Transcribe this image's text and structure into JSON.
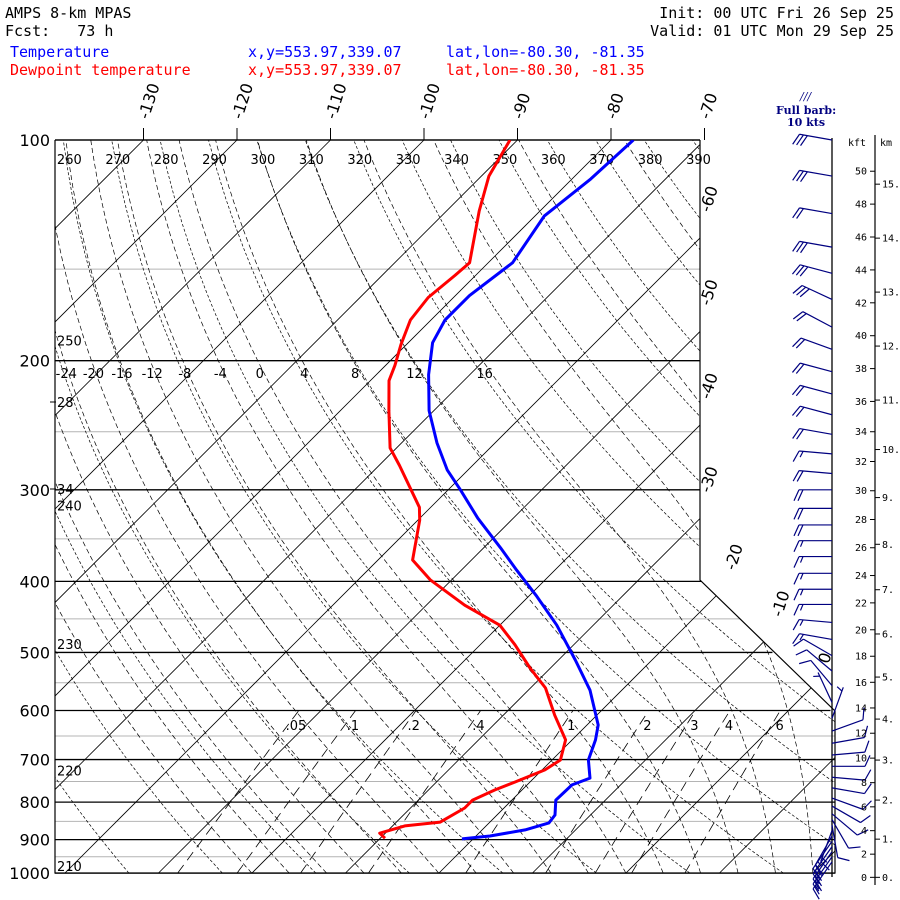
{
  "header": {
    "title": "AMPS 8-km MPAS",
    "fcst": "Fcst:   73 h",
    "init": "Init: 00 UTC Fri 26 Sep 25",
    "valid": "Valid: 01 UTC Mon 29 Sep 25",
    "temp_label": "Temperature",
    "dew_label": "Dewpoint temperature",
    "temp_xy": "x,y=553.97,339.07",
    "temp_latlon": "lat,lon=-80.30, -81.35",
    "dew_xy": "x,y=553.97,339.07",
    "dew_latlon": "lat,lon=-80.30, -81.35"
  },
  "barb_legend": {
    "line1": "Full barb:",
    "line2": "10 kts"
  },
  "colors": {
    "temperature": "#0000ff",
    "dewpoint": "#ff0000",
    "wind": "#000080"
  },
  "chart_data": {
    "type": "skew-t",
    "title": "AMPS 8-km MPAS",
    "pressure_levels": [
      100,
      200,
      300,
      400,
      500,
      600,
      700,
      800,
      900,
      1000
    ],
    "pressure_labels": [
      "100",
      "200",
      "300",
      "400",
      "500",
      "600",
      "700",
      "800",
      "900",
      "1000"
    ],
    "minor_pressure_levels": [
      150,
      250,
      350,
      450,
      550,
      650,
      750,
      850,
      950
    ],
    "isotherm_top_labels": [
      "-130",
      "-120",
      "-110",
      "-100",
      "-90",
      "-80",
      "-70"
    ],
    "isotherm_right_labels": [
      "-60",
      "-50",
      "-40",
      "-30",
      "-20",
      "-10",
      "0"
    ],
    "dry_adiabat_top_labels": [
      "260",
      "270",
      "280",
      "290",
      "300",
      "310",
      "320",
      "330",
      "340",
      "350",
      "360",
      "370",
      "380",
      "390"
    ],
    "dry_adiabat_left_labels": [
      "250",
      "240",
      "230",
      "220",
      "210"
    ],
    "moist_adiabat_labels": [
      "-24",
      "-20",
      "-16",
      "-12",
      "-8",
      "-4",
      "0",
      "4",
      "8",
      "12",
      "16"
    ],
    "left_edge_labels": [
      "28",
      "34"
    ],
    "mixing_ratio_labels": [
      ".05",
      ".1",
      ".2",
      ".4",
      "1",
      "2",
      "3",
      "4",
      "6"
    ],
    "mixing_ratio_values": [
      0.05,
      0.1,
      0.2,
      0.4,
      1,
      2,
      3,
      4,
      6
    ],
    "height_axis": {
      "kft_title": "kft",
      "km_title": "km",
      "kft_labels": [
        "0",
        "2",
        "4",
        "6",
        "8",
        "10",
        "12",
        "14",
        "16",
        "18",
        "20",
        "22",
        "24",
        "26",
        "28",
        "30",
        "32",
        "34",
        "36",
        "38",
        "40",
        "42",
        "44",
        "46",
        "48",
        "50"
      ],
      "km_labels": [
        "0.",
        "1.",
        "2.",
        "3.",
        "4.",
        "5.",
        "6.",
        "7.",
        "8.",
        "9.",
        "10.",
        "11.",
        "12.",
        "13.",
        "14.",
        "15."
      ]
    },
    "temperature": {
      "name": "Temperature",
      "p": [
        100,
        113,
        127,
        147,
        163,
        176,
        189,
        209,
        234,
        259,
        282,
        300,
        328,
        360,
        386,
        418,
        459,
        512,
        563,
        628,
        658,
        701,
        742,
        758,
        795,
        833,
        854,
        873,
        890,
        898
      ],
      "t": [
        -77.6,
        -78.0,
        -79.0,
        -77.4,
        -78.5,
        -78.5,
        -77.4,
        -74.4,
        -70.5,
        -66.2,
        -62.2,
        -58.7,
        -53.8,
        -48.2,
        -44.1,
        -39.3,
        -33.9,
        -28.2,
        -23.4,
        -18.8,
        -17.5,
        -16.1,
        -14.0,
        -15.2,
        -15.3,
        -13.8,
        -13.6,
        -15.4,
        -18.5,
        -21.2
      ]
    },
    "dewpoint": {
      "name": "Dewpoint temperature",
      "p": [
        100,
        112,
        125,
        147,
        153,
        164,
        176,
        190,
        203,
        213,
        234,
        263,
        278,
        317,
        330,
        374,
        398,
        431,
        459,
        488,
        525,
        559,
        609,
        658,
        701,
        723,
        751,
        770,
        795,
        815,
        852,
        862,
        882,
        896
      ],
      "t": [
        -90.8,
        -89.2,
        -86.5,
        -82.0,
        -82.2,
        -82.7,
        -82.2,
        -80.6,
        -79.0,
        -78.0,
        -74.8,
        -70.7,
        -67.8,
        -61.2,
        -59.8,
        -56.3,
        -52.3,
        -45.9,
        -40.0,
        -36.3,
        -32.2,
        -28.4,
        -24.5,
        -20.7,
        -19.1,
        -19.7,
        -21.6,
        -22.9,
        -24.2,
        -24.2,
        -25.3,
        -28.7,
        -30.6,
        -29.5
      ]
    },
    "wind": [
      {
        "p": 100,
        "dir": 280,
        "kt": 30
      },
      {
        "p": 112,
        "dir": 280,
        "kt": 30
      },
      {
        "p": 126,
        "dir": 280,
        "kt": 20
      },
      {
        "p": 140,
        "dir": 280,
        "kt": 30
      },
      {
        "p": 152,
        "dir": 285,
        "kt": 30
      },
      {
        "p": 165,
        "dir": 295,
        "kt": 30
      },
      {
        "p": 180,
        "dir": 298,
        "kt": 20
      },
      {
        "p": 193,
        "dir": 290,
        "kt": 20
      },
      {
        "p": 207,
        "dir": 285,
        "kt": 20
      },
      {
        "p": 222,
        "dir": 285,
        "kt": 20
      },
      {
        "p": 237,
        "dir": 285,
        "kt": 20
      },
      {
        "p": 252,
        "dir": 280,
        "kt": 20
      },
      {
        "p": 268,
        "dir": 275,
        "kt": 15
      },
      {
        "p": 285,
        "dir": 275,
        "kt": 20
      },
      {
        "p": 300,
        "dir": 270,
        "kt": 20
      },
      {
        "p": 318,
        "dir": 270,
        "kt": 20
      },
      {
        "p": 335,
        "dir": 270,
        "kt": 20
      },
      {
        "p": 352,
        "dir": 270,
        "kt": 15
      },
      {
        "p": 370,
        "dir": 270,
        "kt": 15
      },
      {
        "p": 390,
        "dir": 270,
        "kt": 15
      },
      {
        "p": 410,
        "dir": 270,
        "kt": 15
      },
      {
        "p": 430,
        "dir": 270,
        "kt": 15
      },
      {
        "p": 455,
        "dir": 275,
        "kt": 15
      },
      {
        "p": 480,
        "dir": 280,
        "kt": 15
      },
      {
        "p": 505,
        "dir": 300,
        "kt": 10
      },
      {
        "p": 530,
        "dir": 310,
        "kt": 10
      },
      {
        "p": 555,
        "dir": 320,
        "kt": 10
      },
      {
        "p": 585,
        "dir": 335,
        "kt": 5
      },
      {
        "p": 615,
        "dir": 20,
        "kt": 5
      },
      {
        "p": 640,
        "dir": 70,
        "kt": 10
      },
      {
        "p": 665,
        "dir": 80,
        "kt": 10
      },
      {
        "p": 690,
        "dir": 85,
        "kt": 10
      },
      {
        "p": 715,
        "dir": 90,
        "kt": 10
      },
      {
        "p": 740,
        "dir": 95,
        "kt": 10
      },
      {
        "p": 765,
        "dir": 100,
        "kt": 10
      },
      {
        "p": 790,
        "dir": 110,
        "kt": 10
      },
      {
        "p": 810,
        "dir": 120,
        "kt": 10
      },
      {
        "p": 830,
        "dir": 130,
        "kt": 10
      },
      {
        "p": 845,
        "dir": 150,
        "kt": 10
      },
      {
        "p": 860,
        "dir": 170,
        "kt": 10
      },
      {
        "p": 875,
        "dir": 200,
        "kt": 15
      },
      {
        "p": 890,
        "dir": 210,
        "kt": 15
      },
      {
        "p": 905,
        "dir": 215,
        "kt": 20
      },
      {
        "p": 920,
        "dir": 215,
        "kt": 20
      },
      {
        "p": 935,
        "dir": 215,
        "kt": 20
      },
      {
        "p": 950,
        "dir": 215,
        "kt": 20
      },
      {
        "p": 965,
        "dir": 215,
        "kt": 15
      }
    ]
  }
}
